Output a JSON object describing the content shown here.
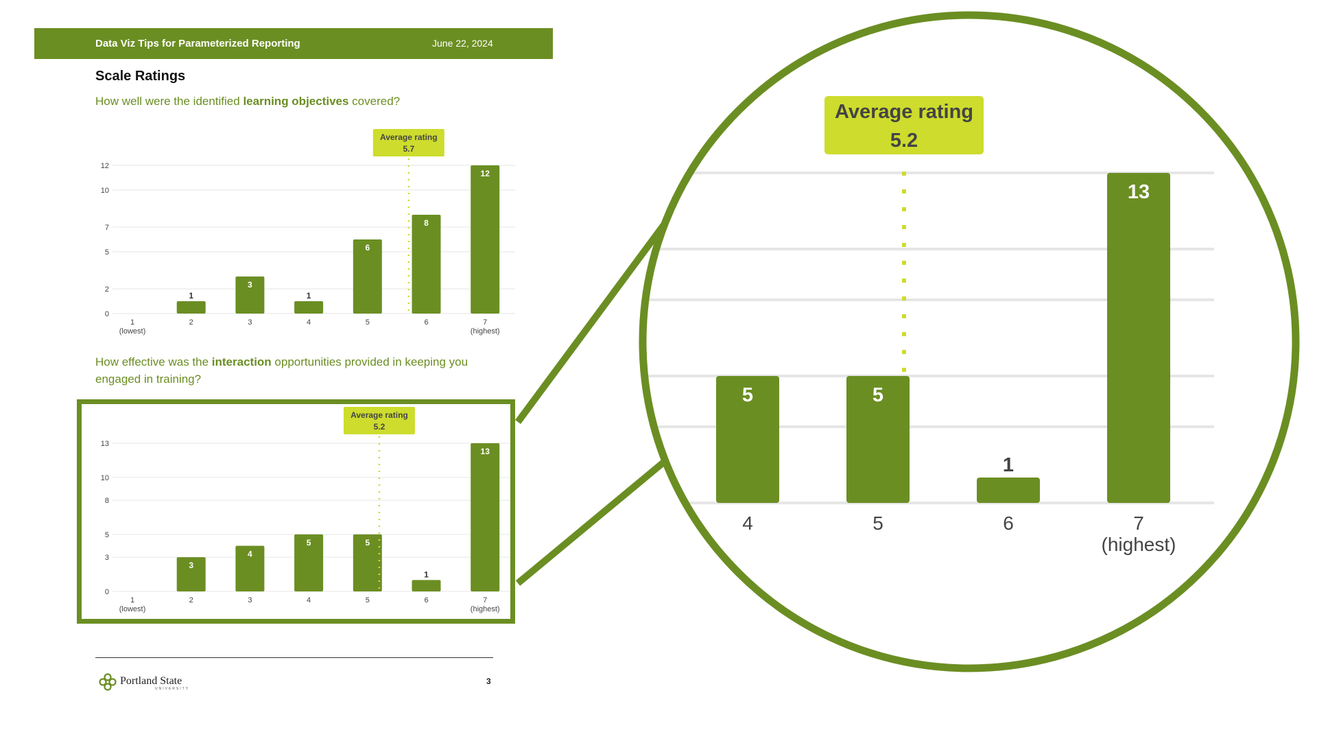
{
  "header": {
    "title": "Data Viz Tips for Parameterized Reporting",
    "date": "June 22, 2024"
  },
  "section_title": "Scale Ratings",
  "questions": [
    {
      "pre": "How well were the identified ",
      "bold": "learning objectives",
      "post": " covered?"
    },
    {
      "pre": "How effective was the ",
      "bold": "interaction",
      "post": " opportunities provided in keeping you engaged in training?"
    }
  ],
  "footer": {
    "brand": "Portland State",
    "university": "UNIVERSITY",
    "page": "3"
  },
  "colors": {
    "primary": "#6b8e23",
    "accent": "#cddc2d",
    "grid": "#e6e6e6"
  },
  "chart_data": [
    {
      "type": "bar",
      "categories": [
        "1\n(lowest)",
        "2",
        "3",
        "4",
        "5",
        "6",
        "7\n(highest)"
      ],
      "values": [
        0,
        1,
        3,
        1,
        6,
        8,
        12
      ],
      "data_labels": [
        "",
        "1",
        "3",
        "1",
        "6",
        "8",
        "12"
      ],
      "y_ticks": [
        0,
        2,
        5,
        7,
        10,
        12
      ],
      "ylim": [
        0,
        12
      ],
      "annotation": {
        "label": "Average rating",
        "value": "5.7",
        "x": 5.7
      }
    },
    {
      "type": "bar",
      "categories": [
        "1\n(lowest)",
        "2",
        "3",
        "4",
        "5",
        "6",
        "7\n(highest)"
      ],
      "values": [
        0,
        3,
        4,
        5,
        5,
        1,
        13
      ],
      "data_labels": [
        "",
        "3",
        "4",
        "5",
        "5",
        "1",
        "13"
      ],
      "y_ticks": [
        0,
        3,
        5,
        8,
        10,
        13
      ],
      "ylim": [
        0,
        13
      ],
      "annotation": {
        "label": "Average rating",
        "value": "5.2",
        "x": 5.2
      }
    },
    {
      "type": "bar",
      "categories": [
        "4",
        "5",
        "6",
        "7\n(highest)"
      ],
      "values": [
        5,
        5,
        1,
        13
      ],
      "data_labels": [
        "5",
        "5",
        "1",
        "13"
      ],
      "ylim": [
        0,
        13
      ],
      "annotation": {
        "label": "Average rating",
        "value": "5.2",
        "x": 5.2
      }
    }
  ]
}
